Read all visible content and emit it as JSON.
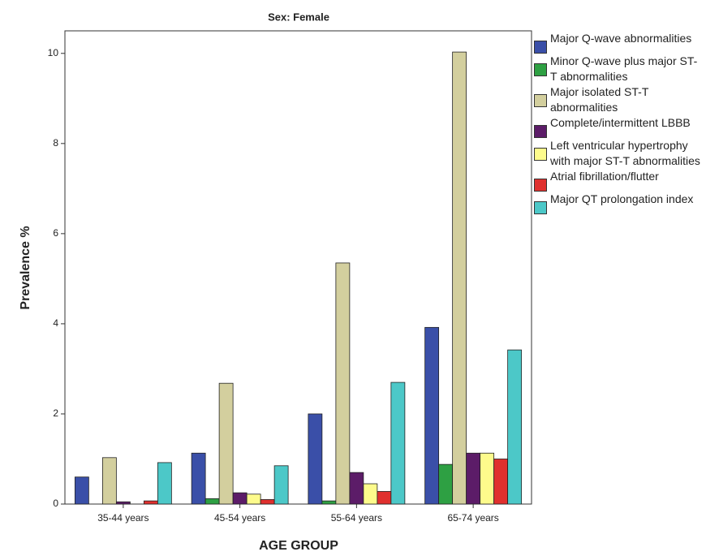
{
  "chart_data": {
    "type": "bar",
    "title": "Sex: Female",
    "xlabel": "AGE GROUP",
    "ylabel": "Prevalence %",
    "categories": [
      "35-44 years",
      "45-54 years",
      "55-64 years",
      "65-74 years"
    ],
    "ylim": [
      0,
      10.5
    ],
    "yticks": [
      0,
      2,
      4,
      6,
      8,
      10
    ],
    "series": [
      {
        "name": "Major Q-wave abnormalities",
        "color": "#3a4fa8",
        "values": [
          0.6,
          1.13,
          2.0,
          3.92
        ]
      },
      {
        "name": "Minor Q-wave plus major ST-T abnormalities",
        "color": "#2ea043",
        "values": [
          0,
          0.12,
          0.07,
          0.88
        ]
      },
      {
        "name": "Major isolated ST-T abnormalities",
        "color": "#d3cf9e",
        "values": [
          1.03,
          2.68,
          5.35,
          10.03
        ]
      },
      {
        "name": "Complete/intermittent LBBB",
        "color": "#5c1c68",
        "values": [
          0.05,
          0.25,
          0.7,
          1.13
        ]
      },
      {
        "name": "Left ventricular hypertrophy with major ST-T abnormalities",
        "color": "#fdfb8c",
        "values": [
          0,
          0.22,
          0.45,
          1.13
        ]
      },
      {
        "name": "Atrial fibrillation/flutter",
        "color": "#e0302e",
        "values": [
          0.07,
          0.1,
          0.28,
          1.0
        ]
      },
      {
        "name": "Major QT prolongation index",
        "color": "#4cc8c8",
        "values": [
          0.92,
          0.85,
          2.7,
          3.42
        ]
      }
    ]
  }
}
